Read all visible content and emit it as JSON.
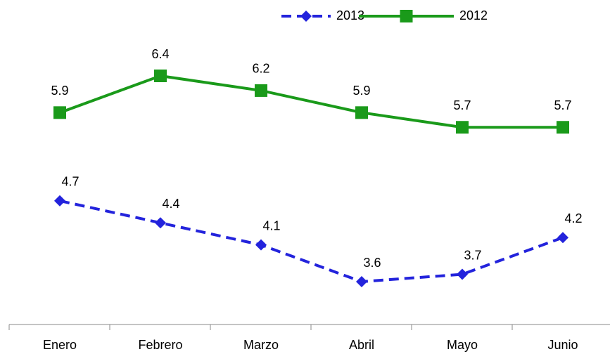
{
  "chart_data": {
    "type": "line",
    "categories": [
      "Enero",
      "Febrero",
      "Marzo",
      "Abril",
      "Mayo",
      "Junio"
    ],
    "series": [
      {
        "name": "2013",
        "color": "#2323dc",
        "dashed": true,
        "marker": "diamond",
        "values": [
          4.7,
          4.4,
          4.1,
          3.6,
          3.7,
          4.2
        ]
      },
      {
        "name": "2012",
        "color": "#1a9a1a",
        "dashed": false,
        "marker": "square",
        "values": [
          5.9,
          6.4,
          6.2,
          5.9,
          5.7,
          5.7
        ]
      }
    ],
    "legend": "top"
  }
}
